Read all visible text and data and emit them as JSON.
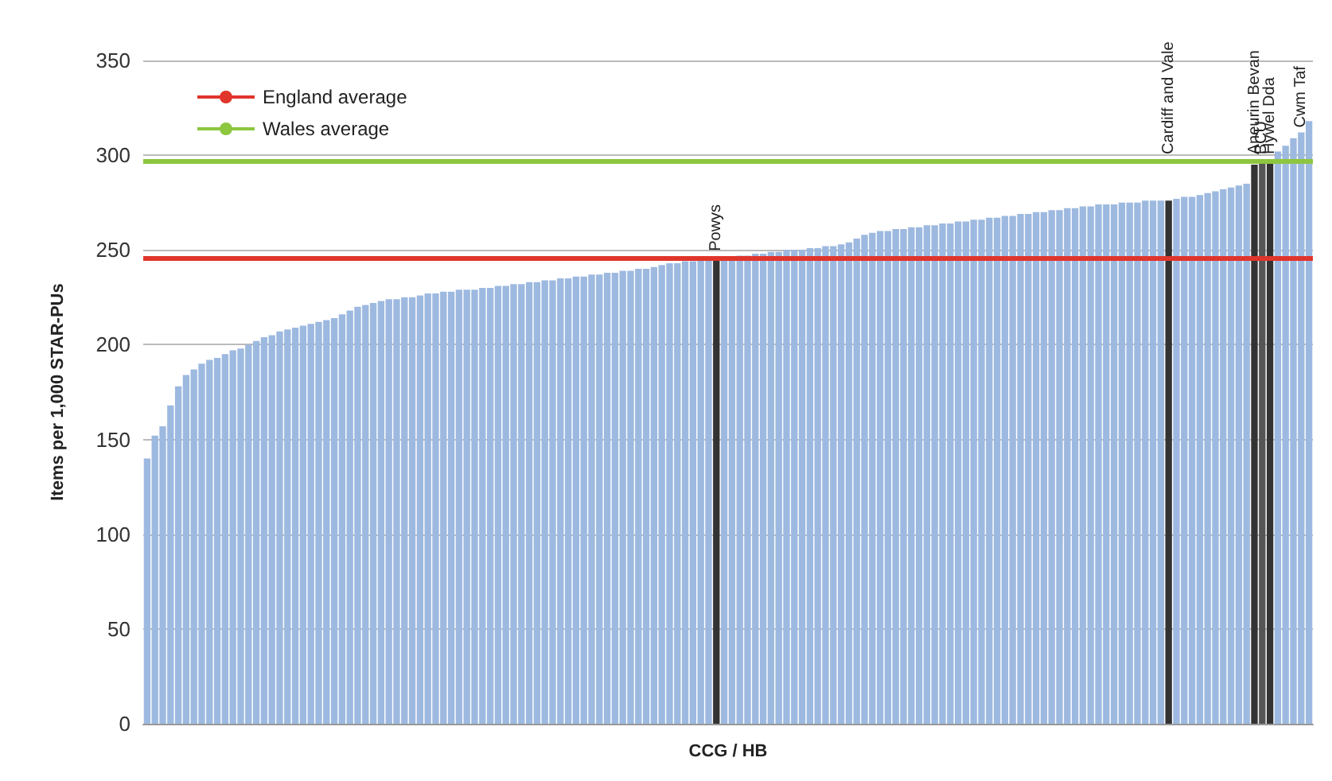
{
  "chart_data": {
    "type": "bar",
    "xlabel": "CCG / HB",
    "ylabel": "Items per 1,000 STAR-PUs",
    "categories": [
      null,
      null,
      null,
      null,
      null,
      null,
      null,
      null,
      null,
      null,
      null,
      null,
      null,
      null,
      null,
      null,
      null,
      null,
      null,
      null,
      null,
      null,
      null,
      null,
      null,
      null,
      null,
      null,
      null,
      null,
      null,
      null,
      null,
      null,
      null,
      null,
      null,
      null,
      null,
      null,
      null,
      null,
      null,
      null,
      null,
      null,
      null,
      null,
      null,
      null,
      null,
      null,
      null,
      null,
      null,
      null,
      null,
      null,
      null,
      null,
      null,
      null,
      null,
      null,
      null,
      null,
      null,
      null,
      null,
      null,
      null,
      null,
      null,
      "Powys",
      null,
      null,
      null,
      null,
      null,
      null,
      null,
      null,
      null,
      null,
      null,
      null,
      null,
      null,
      null,
      null,
      null,
      null,
      null,
      null,
      null,
      null,
      null,
      null,
      null,
      null,
      null,
      null,
      null,
      null,
      null,
      null,
      null,
      null,
      null,
      null,
      null,
      null,
      null,
      null,
      null,
      null,
      null,
      null,
      null,
      null,
      null,
      null,
      null,
      null,
      null,
      null,
      null,
      null,
      null,
      null,
      null,
      "Cardiff and Vale",
      null,
      null,
      null,
      null,
      null,
      null,
      null,
      null,
      null,
      null,
      "Aneurin Bevan",
      "BCU",
      "Hywel Dda",
      null,
      null,
      null,
      "Cwm Taf",
      null
    ],
    "values": [
      140,
      152,
      157,
      168,
      178,
      184,
      187,
      190,
      192,
      193,
      195,
      197,
      198,
      200,
      202,
      204,
      205,
      207,
      208,
      209,
      210,
      211,
      212,
      213,
      214,
      216,
      218,
      220,
      221,
      222,
      223,
      224,
      224,
      225,
      225,
      226,
      227,
      227,
      228,
      228,
      229,
      229,
      229,
      230,
      230,
      231,
      231,
      232,
      232,
      233,
      233,
      234,
      234,
      235,
      235,
      236,
      236,
      237,
      237,
      238,
      238,
      239,
      239,
      240,
      240,
      241,
      242,
      243,
      243,
      244,
      244,
      245,
      245,
      245,
      246,
      246,
      247,
      247,
      248,
      248,
      249,
      249,
      250,
      250,
      250,
      251,
      251,
      252,
      252,
      253,
      254,
      256,
      258,
      259,
      260,
      260,
      261,
      261,
      262,
      262,
      263,
      263,
      264,
      264,
      265,
      265,
      266,
      266,
      267,
      267,
      268,
      268,
      269,
      269,
      270,
      270,
      271,
      271,
      272,
      272,
      273,
      273,
      274,
      274,
      274,
      275,
      275,
      275,
      276,
      276,
      276,
      276,
      277,
      278,
      278,
      279,
      280,
      281,
      282,
      283,
      284,
      285,
      295,
      296,
      298,
      302,
      305,
      309,
      312,
      318
    ],
    "colors": [
      "#9db9e0",
      "#9db9e0",
      "#9db9e0",
      "#9db9e0",
      "#9db9e0",
      "#9db9e0",
      "#9db9e0",
      "#9db9e0",
      "#9db9e0",
      "#9db9e0",
      "#9db9e0",
      "#9db9e0",
      "#9db9e0",
      "#9db9e0",
      "#9db9e0",
      "#9db9e0",
      "#9db9e0",
      "#9db9e0",
      "#9db9e0",
      "#9db9e0",
      "#9db9e0",
      "#9db9e0",
      "#9db9e0",
      "#9db9e0",
      "#9db9e0",
      "#9db9e0",
      "#9db9e0",
      "#9db9e0",
      "#9db9e0",
      "#9db9e0",
      "#9db9e0",
      "#9db9e0",
      "#9db9e0",
      "#9db9e0",
      "#9db9e0",
      "#9db9e0",
      "#9db9e0",
      "#9db9e0",
      "#9db9e0",
      "#9db9e0",
      "#9db9e0",
      "#9db9e0",
      "#9db9e0",
      "#9db9e0",
      "#9db9e0",
      "#9db9e0",
      "#9db9e0",
      "#9db9e0",
      "#9db9e0",
      "#9db9e0",
      "#9db9e0",
      "#9db9e0",
      "#9db9e0",
      "#9db9e0",
      "#9db9e0",
      "#9db9e0",
      "#9db9e0",
      "#9db9e0",
      "#9db9e0",
      "#9db9e0",
      "#9db9e0",
      "#9db9e0",
      "#9db9e0",
      "#9db9e0",
      "#9db9e0",
      "#9db9e0",
      "#9db9e0",
      "#9db9e0",
      "#9db9e0",
      "#9db9e0",
      "#9db9e0",
      "#9db9e0",
      "#9db9e0",
      "#333333",
      "#9db9e0",
      "#9db9e0",
      "#9db9e0",
      "#9db9e0",
      "#9db9e0",
      "#9db9e0",
      "#9db9e0",
      "#9db9e0",
      "#9db9e0",
      "#9db9e0",
      "#9db9e0",
      "#9db9e0",
      "#9db9e0",
      "#9db9e0",
      "#9db9e0",
      "#9db9e0",
      "#9db9e0",
      "#9db9e0",
      "#9db9e0",
      "#9db9e0",
      "#9db9e0",
      "#9db9e0",
      "#9db9e0",
      "#9db9e0",
      "#9db9e0",
      "#9db9e0",
      "#9db9e0",
      "#9db9e0",
      "#9db9e0",
      "#9db9e0",
      "#9db9e0",
      "#9db9e0",
      "#9db9e0",
      "#9db9e0",
      "#9db9e0",
      "#9db9e0",
      "#9db9e0",
      "#9db9e0",
      "#9db9e0",
      "#9db9e0",
      "#9db9e0",
      "#9db9e0",
      "#9db9e0",
      "#9db9e0",
      "#9db9e0",
      "#9db9e0",
      "#9db9e0",
      "#9db9e0",
      "#9db9e0",
      "#9db9e0",
      "#9db9e0",
      "#9db9e0",
      "#9db9e0",
      "#9db9e0",
      "#9db9e0",
      "#9db9e0",
      "#9db9e0",
      "#333333",
      "#9db9e0",
      "#9db9e0",
      "#9db9e0",
      "#9db9e0",
      "#9db9e0",
      "#9db9e0",
      "#9db9e0",
      "#9db9e0",
      "#9db9e0",
      "#9db9e0",
      "#333333",
      "#555555",
      "#333333",
      "#9db9e0",
      "#9db9e0",
      "#9db9e0",
      "#9db9e0",
      "#9db9e0"
    ],
    "ylim": [
      0,
      350
    ],
    "yticks": [
      0,
      50,
      100,
      150,
      200,
      250,
      300,
      350
    ],
    "grid": "y",
    "tick_labels": "y",
    "legend": "top left",
    "ref_lines": [
      {
        "axis": "y",
        "value": 246,
        "label": "England average",
        "color": "#e0352b"
      },
      {
        "axis": "y",
        "value": 297,
        "label": "Wales average",
        "color": "#8dc63f"
      }
    ]
  }
}
